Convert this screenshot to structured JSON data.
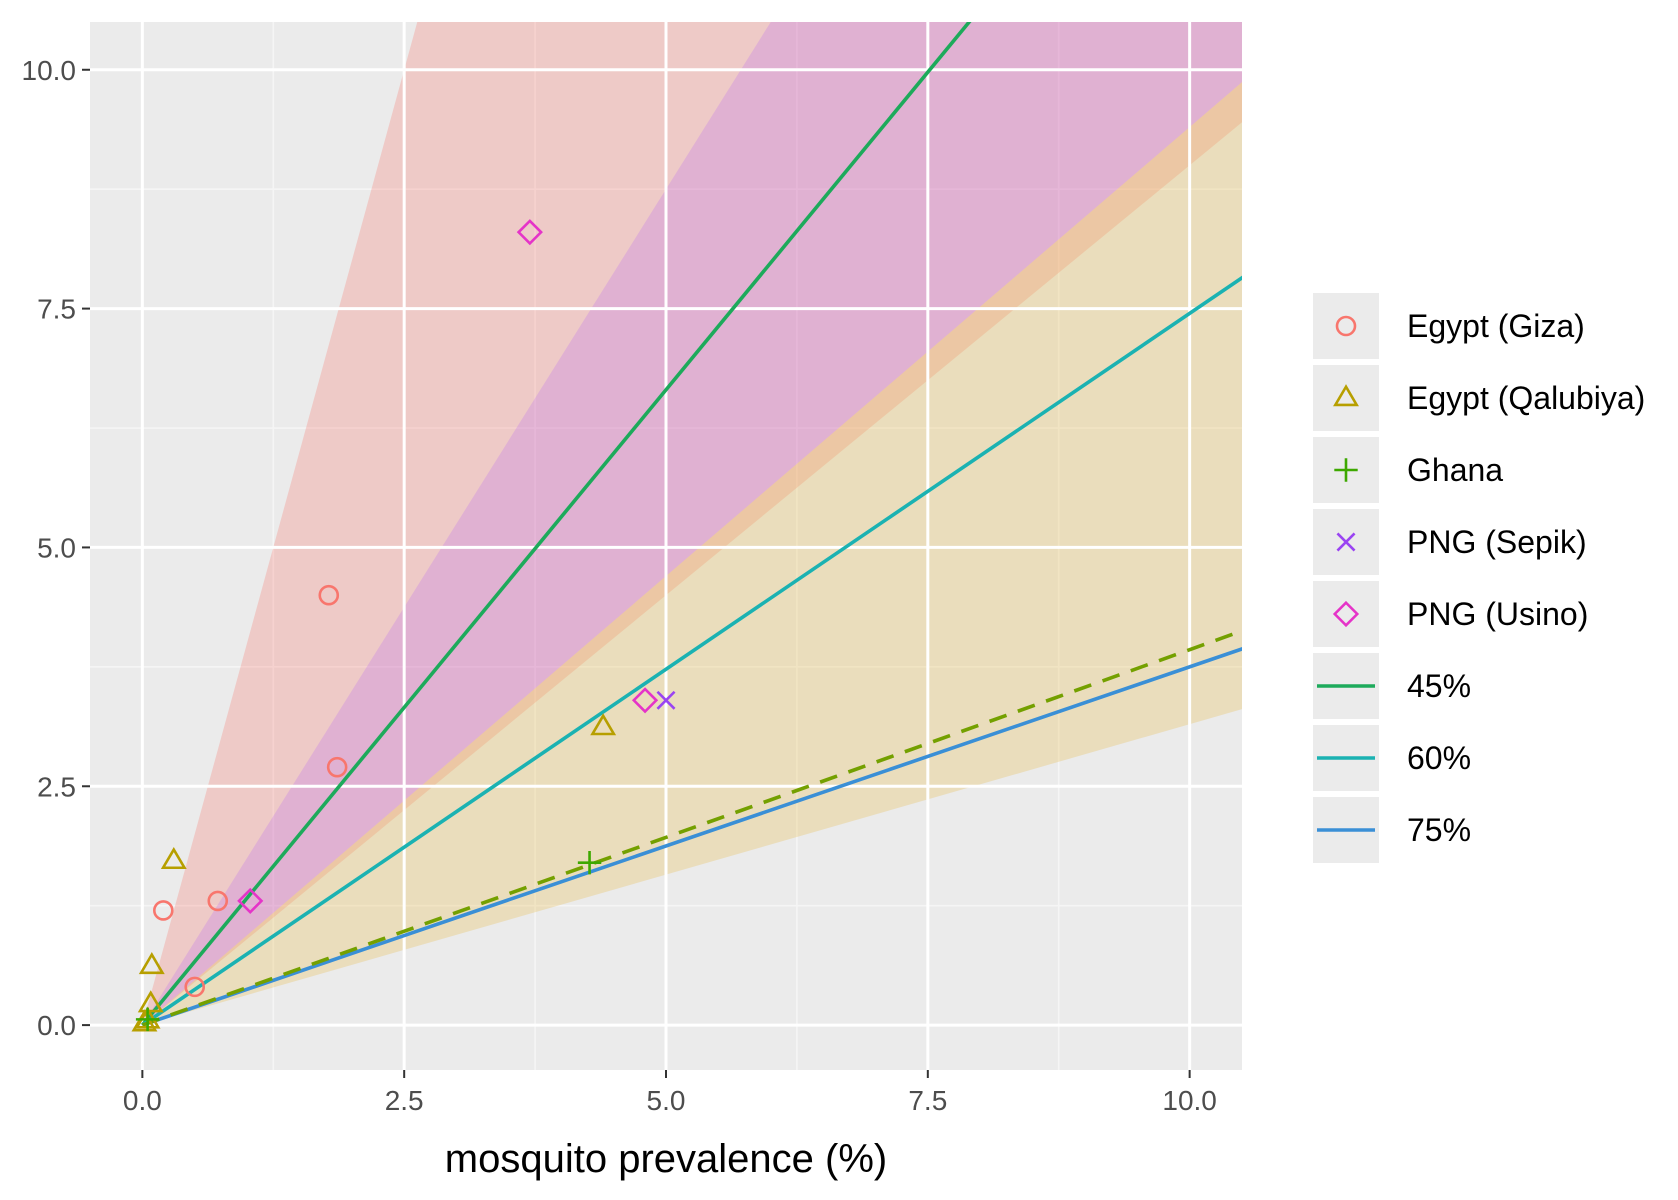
{
  "chart_data": {
    "type": "scatter",
    "title": "",
    "xlabel": "mosquito prevalence (%)",
    "ylabel": "",
    "xlim": [
      -0.5,
      10.5
    ],
    "ylim": [
      -0.47,
      10.5
    ],
    "x_ticks": [
      0.0,
      2.5,
      5.0,
      7.5,
      10.0
    ],
    "x_tick_labels": [
      "0.0",
      "2.5",
      "5.0",
      "7.5",
      "10.0"
    ],
    "y_ticks": [
      0.0,
      2.5,
      5.0,
      7.5,
      10.0
    ],
    "y_tick_labels": [
      "0.0",
      "2.5",
      "5.0",
      "7.5",
      "10.0"
    ],
    "grid": true,
    "legend_position": "right",
    "series": [
      {
        "name": "Egypt (Giza)",
        "shape": "circle",
        "color": "#F8766D",
        "points": [
          [
            0.2,
            1.2
          ],
          [
            0.5,
            0.4
          ],
          [
            0.72,
            1.3
          ],
          [
            1.78,
            4.5
          ],
          [
            1.86,
            2.7
          ]
        ]
      },
      {
        "name": "Egypt (Qalubiya)",
        "shape": "triangle",
        "color": "#B79F00",
        "points": [
          [
            0.02,
            0.02
          ],
          [
            0.05,
            0.05
          ],
          [
            0.08,
            0.22
          ],
          [
            0.09,
            0.62
          ],
          [
            0.3,
            1.72
          ],
          [
            4.4,
            3.12
          ]
        ]
      },
      {
        "name": "Ghana",
        "shape": "plus",
        "color": "#3DA800",
        "points": [
          [
            0.05,
            0.06
          ],
          [
            4.27,
            1.7
          ]
        ]
      },
      {
        "name": "PNG (Sepik)",
        "shape": "cross",
        "color": "#9A44F2",
        "points": [
          [
            5.0,
            3.4
          ]
        ]
      },
      {
        "name": "PNG (Usino)",
        "shape": "diamond",
        "color": "#E534C8",
        "points": [
          [
            1.03,
            1.3
          ],
          [
            3.7,
            8.3
          ],
          [
            4.8,
            3.4
          ]
        ]
      }
    ],
    "lines": [
      {
        "name": "45%",
        "color": "#1DAA5B",
        "slope": 1.33,
        "dash": false
      },
      {
        "name": "60%",
        "color": "#1BB2B2",
        "slope": 0.745,
        "dash": false
      },
      {
        "name": "75%",
        "color": "#3A8FD6",
        "slope": 0.375,
        "dash": false
      },
      {
        "name": "",
        "color": "#74A000",
        "slope": 0.393,
        "dash": true
      }
    ],
    "bands": [
      {
        "color": "#F8766D",
        "opacity": 0.28,
        "lower_slope": 0.9,
        "upper_slope": 4.0
      },
      {
        "color": "#BD72F0",
        "opacity": 0.28,
        "lower_slope": 0.94,
        "upper_slope": 1.75
      },
      {
        "color": "#E8C25A",
        "opacity": 0.32,
        "lower_slope": 0.315,
        "upper_slope": 0.94
      }
    ],
    "legend": [
      {
        "label": "Egypt (Giza)",
        "kind": "circle",
        "color": "#F8766D"
      },
      {
        "label": "Egypt (Qalubiya)",
        "kind": "triangle",
        "color": "#B79F00"
      },
      {
        "label": "Ghana",
        "kind": "plus",
        "color": "#3DA800"
      },
      {
        "label": "PNG (Sepik)",
        "kind": "cross",
        "color": "#9A44F2"
      },
      {
        "label": "PNG (Usino)",
        "kind": "diamond",
        "color": "#E534C8"
      },
      {
        "label": "45%",
        "kind": "line",
        "color": "#1DAA5B"
      },
      {
        "label": "60%",
        "kind": "line",
        "color": "#1BB2B2"
      },
      {
        "label": "75%",
        "kind": "line",
        "color": "#3A8FD6"
      }
    ]
  }
}
